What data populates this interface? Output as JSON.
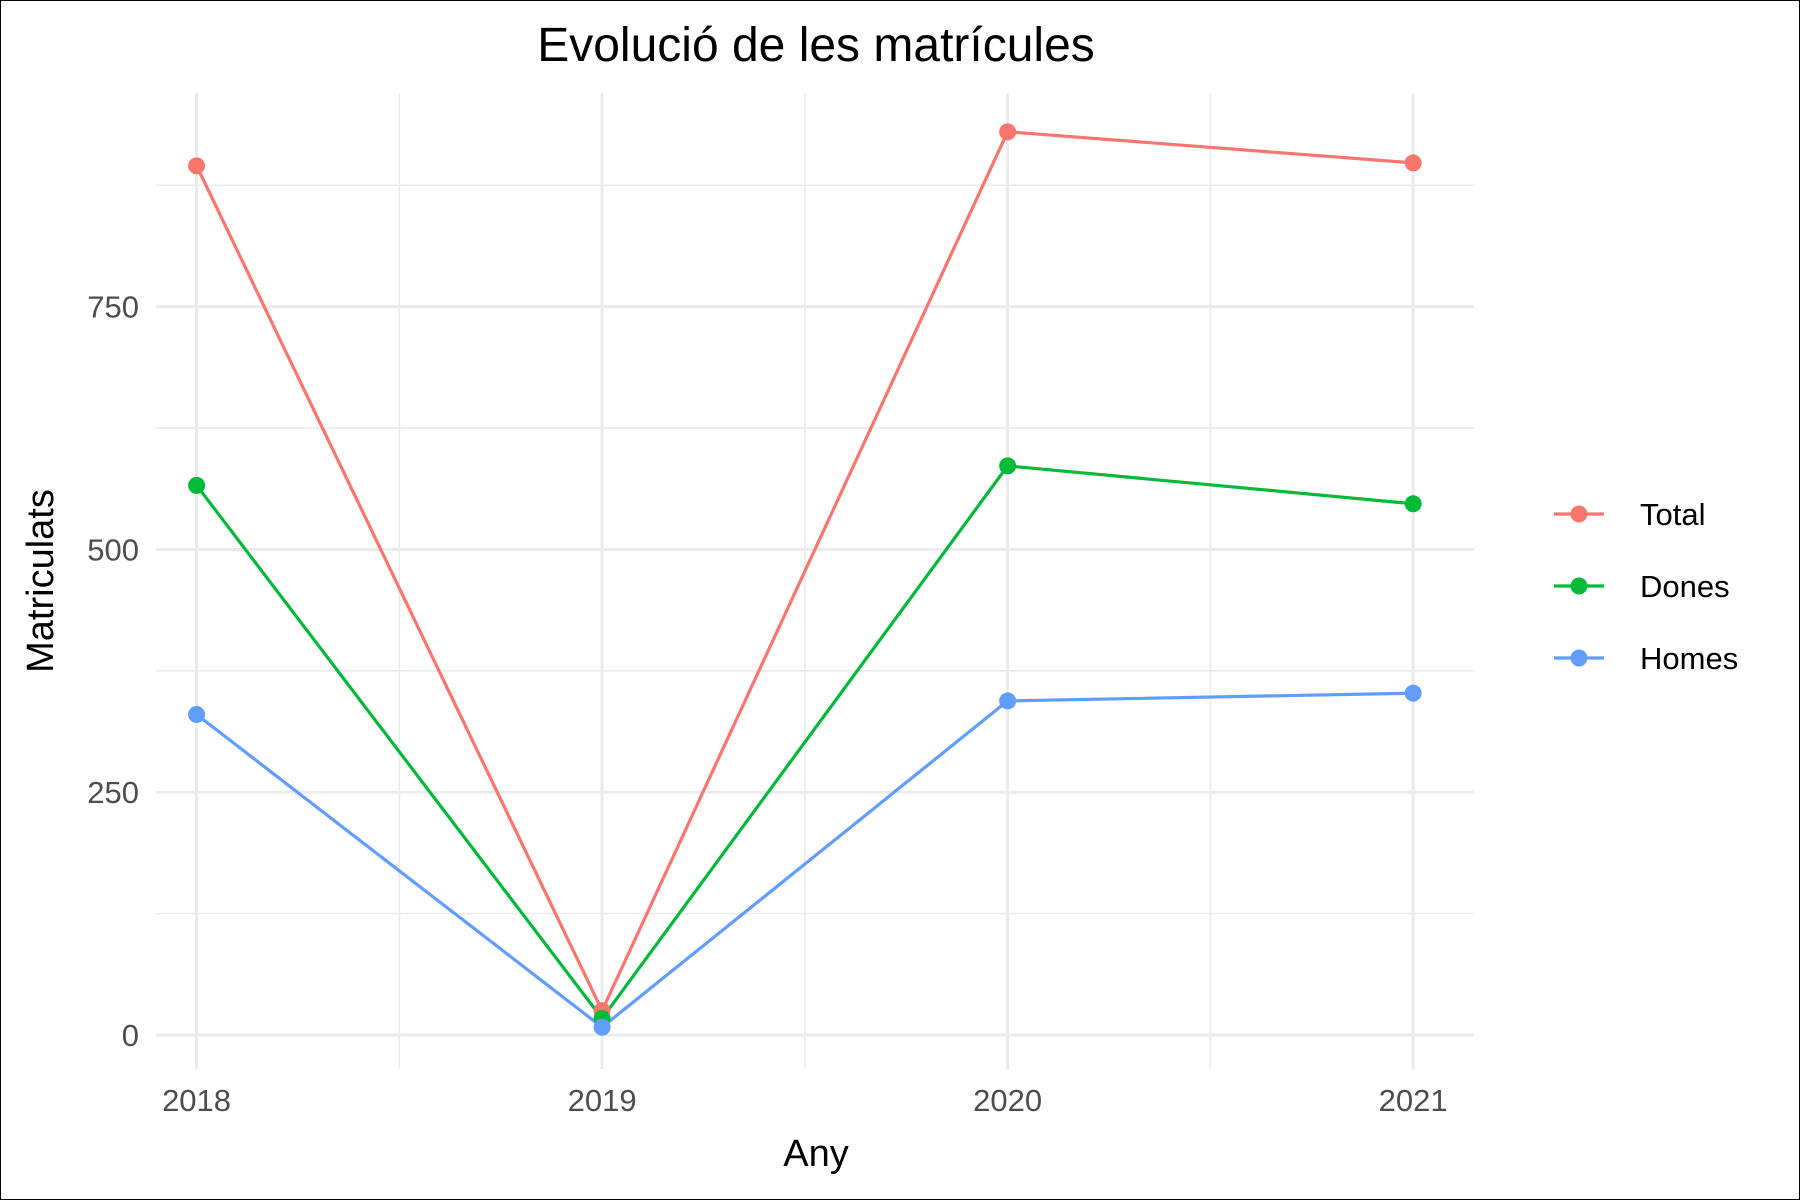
{
  "chart_data": {
    "type": "line",
    "title": "Evolució de les matrícules",
    "xlabel": "Any",
    "ylabel": "Matriculats",
    "x": [
      2018,
      2019,
      2020,
      2021
    ],
    "x_tick_labels": [
      "2018",
      "2019",
      "2020",
      "2021"
    ],
    "y_ticks": [
      0,
      250,
      500,
      750
    ],
    "y_tick_labels": [
      "0",
      "250",
      "500",
      "750"
    ],
    "ylim": [
      -35,
      970
    ],
    "grid": true,
    "legend_position": "right",
    "series": [
      {
        "name": "Total",
        "color": "#F8766D",
        "values": [
          895,
          25,
          930,
          898
        ]
      },
      {
        "name": "Dones",
        "color": "#00BA38",
        "values": [
          566,
          17,
          586,
          547
        ]
      },
      {
        "name": "Homes",
        "color": "#619CFF",
        "values": [
          330,
          8,
          344,
          352
        ]
      }
    ]
  }
}
